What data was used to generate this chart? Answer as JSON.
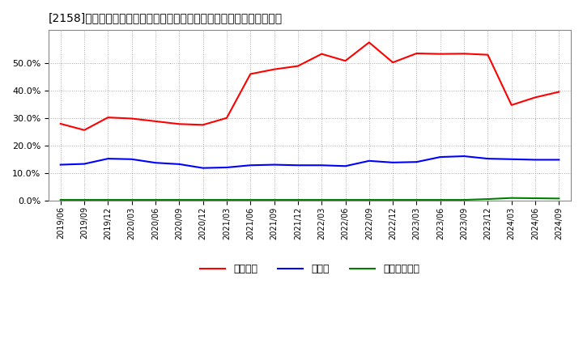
{
  "title": "[2158]　自己資本、のれん、繰延税金資産の総資産に対する比率の推移",
  "x_labels": [
    "2019/06",
    "2019/09",
    "2019/12",
    "2020/03",
    "2020/06",
    "2020/09",
    "2020/12",
    "2021/03",
    "2021/06",
    "2021/09",
    "2021/12",
    "2022/03",
    "2022/06",
    "2022/09",
    "2022/12",
    "2023/03",
    "2023/06",
    "2023/09",
    "2023/12",
    "2024/03",
    "2024/06",
    "2024/09"
  ],
  "jikoshihon": [
    0.279,
    0.256,
    0.302,
    0.298,
    0.288,
    0.278,
    0.275,
    0.3,
    0.46,
    0.477,
    0.489,
    0.533,
    0.508,
    0.575,
    0.502,
    0.535,
    0.533,
    0.534,
    0.53,
    0.347,
    0.375,
    0.395
  ],
  "noren": [
    0.13,
    0.133,
    0.152,
    0.15,
    0.137,
    0.132,
    0.118,
    0.12,
    0.128,
    0.13,
    0.128,
    0.128,
    0.125,
    0.144,
    0.138,
    0.14,
    0.158,
    0.161,
    0.152,
    0.15,
    0.148,
    0.148
  ],
  "kurinobe": [
    0.002,
    0.002,
    0.002,
    0.002,
    0.002,
    0.002,
    0.002,
    0.002,
    0.002,
    0.002,
    0.002,
    0.002,
    0.002,
    0.002,
    0.002,
    0.002,
    0.002,
    0.002,
    0.005,
    0.009,
    0.008,
    0.007
  ],
  "color_jikoshihon": "#ff0000",
  "color_noren": "#0000ff",
  "color_kurinobe": "#008000",
  "legend_label_jikoshihon": "自己資本",
  "legend_label_noren": "のれん",
  "legend_label_kurinobe": "繰延税金資産",
  "background_color": "#ffffff",
  "grid_color": "#aaaaaa",
  "ylim": [
    0.0,
    0.62
  ],
  "yticks": [
    0.0,
    0.1,
    0.2,
    0.3,
    0.4,
    0.5
  ]
}
